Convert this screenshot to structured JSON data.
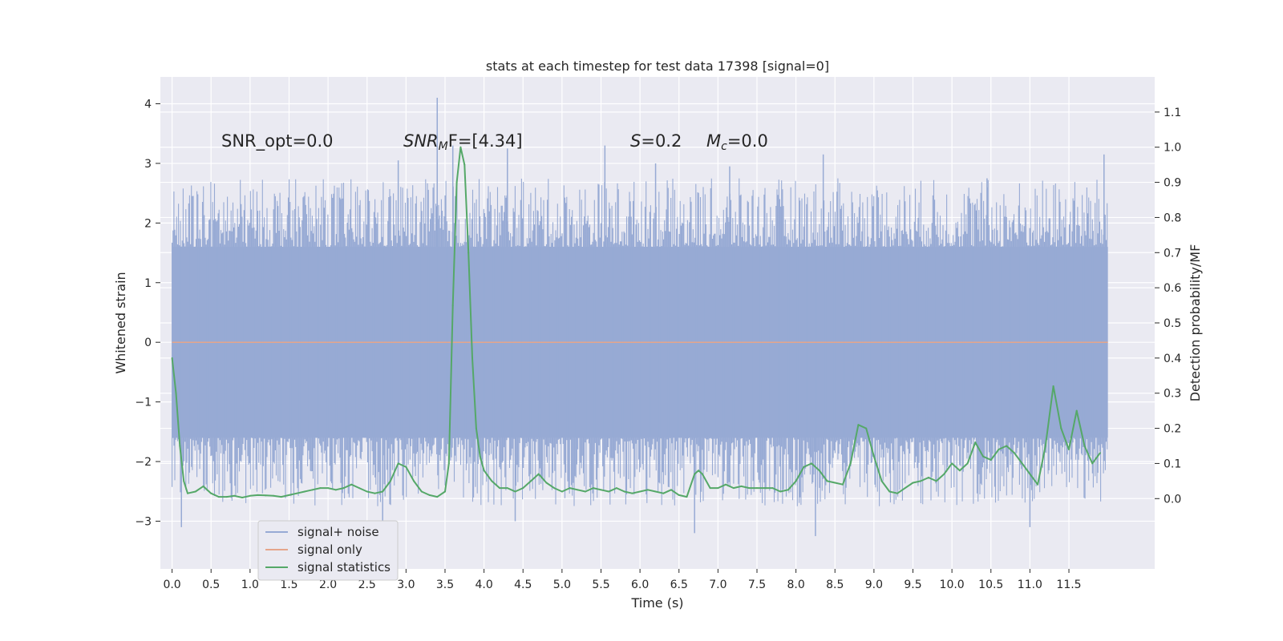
{
  "chart_data": {
    "type": "line",
    "title": "stats at each timestep for test data 17398 [signal=0]",
    "xlabel": "Time (s)",
    "ylabel": "Whitened strain",
    "y2label": "Detection probability/MF",
    "xlim": [
      -0.15,
      12.6
    ],
    "ylim": [
      -3.8,
      4.45
    ],
    "y2lim": [
      -0.2,
      1.2
    ],
    "x_ticks": [
      0.0,
      0.5,
      1.0,
      1.5,
      2.0,
      2.5,
      3.0,
      3.5,
      4.0,
      4.5,
      5.0,
      5.5,
      6.0,
      6.5,
      7.0,
      7.5,
      8.0,
      8.5,
      9.0,
      9.5,
      10.0,
      10.5,
      11.0,
      11.5
    ],
    "x_tick_labels": [
      "0.0",
      "0.5",
      "1.0",
      "1.5",
      "2.0",
      "2.5",
      "3.0",
      "3.5",
      "4.0",
      "4.5",
      "5.0",
      "5.5",
      "6.0",
      "6.5",
      "7.0",
      "7.5",
      "8.0",
      "8.5",
      "9.0",
      "9.5",
      "10.0",
      "10.5",
      "11.0",
      "11.5"
    ],
    "y_ticks": [
      -3,
      -2,
      -1,
      0,
      1,
      2,
      3,
      4
    ],
    "y_tick_labels": [
      "−3",
      "−2",
      "−1",
      "0",
      "1",
      "2",
      "3",
      "4"
    ],
    "y2_ticks": [
      0.0,
      0.1,
      0.2,
      0.3,
      0.4,
      0.5,
      0.6,
      0.7,
      0.8,
      0.9,
      1.0,
      1.1
    ],
    "y2_tick_labels": [
      "0.0",
      "0.1",
      "0.2",
      "0.3",
      "0.4",
      "0.5",
      "0.6",
      "0.7",
      "0.8",
      "0.9",
      "1.0",
      "1.1"
    ],
    "grid": true,
    "legend_position": "bottom-left",
    "annotations": {
      "snr_opt": "SNR_opt=0.0",
      "snr_mf_main": "SNR",
      "snr_mf_sub": "M",
      "snr_mf_rest": "F=[4.34]",
      "s_main": "S",
      "s_rest": "=0.2",
      "mc_main": "M",
      "mc_sub": "c",
      "mc_rest": "=0.0"
    },
    "series": [
      {
        "name": "signal+ noise",
        "color": "#97aad4",
        "axis": "left",
        "x_range": [
          0.0,
          12.0
        ],
        "envelope_typical": [
          -1.6,
          1.6
        ],
        "envelope_peak": [
          -3.2,
          4.1
        ],
        "peaks": [
          {
            "x": 3.4,
            "y": 4.1
          },
          {
            "x": 3.6,
            "y": 3.3
          },
          {
            "x": 4.3,
            "y": 3.25
          },
          {
            "x": 5.55,
            "y": 3.3
          },
          {
            "x": 8.35,
            "y": 3.15
          },
          {
            "x": 11.95,
            "y": 3.15
          },
          {
            "x": 2.9,
            "y": 3.05
          },
          {
            "x": 6.2,
            "y": 3.0
          },
          {
            "x": 7.15,
            "y": 2.95
          },
          {
            "x": 10.45,
            "y": 2.75
          },
          {
            "x": 0.12,
            "y": -3.1
          },
          {
            "x": 6.7,
            "y": -3.2
          },
          {
            "x": 8.25,
            "y": -3.25
          },
          {
            "x": 11.0,
            "y": -3.1
          },
          {
            "x": 2.7,
            "y": -3.05
          },
          {
            "x": 4.4,
            "y": -3.0
          }
        ]
      },
      {
        "name": "signal only",
        "color": "#e5a58b",
        "axis": "left",
        "x": [
          0.0,
          12.0
        ],
        "y": [
          0.0,
          0.0
        ]
      },
      {
        "name": "signal statistics",
        "color": "#55a868",
        "axis": "right",
        "x": [
          0.0,
          0.05,
          0.1,
          0.15,
          0.2,
          0.3,
          0.4,
          0.5,
          0.6,
          0.7,
          0.8,
          0.9,
          1.0,
          1.1,
          1.2,
          1.3,
          1.4,
          1.5,
          1.6,
          1.7,
          1.8,
          1.9,
          2.0,
          2.1,
          2.2,
          2.3,
          2.4,
          2.5,
          2.6,
          2.7,
          2.8,
          2.9,
          3.0,
          3.1,
          3.2,
          3.3,
          3.4,
          3.5,
          3.55,
          3.6,
          3.65,
          3.7,
          3.75,
          3.8,
          3.85,
          3.9,
          3.95,
          4.0,
          4.1,
          4.2,
          4.3,
          4.4,
          4.5,
          4.6,
          4.7,
          4.8,
          4.9,
          5.0,
          5.1,
          5.2,
          5.3,
          5.4,
          5.5,
          5.6,
          5.7,
          5.8,
          5.9,
          6.0,
          6.1,
          6.2,
          6.3,
          6.4,
          6.5,
          6.6,
          6.7,
          6.75,
          6.8,
          6.9,
          7.0,
          7.1,
          7.2,
          7.3,
          7.4,
          7.5,
          7.6,
          7.7,
          7.8,
          7.9,
          8.0,
          8.1,
          8.2,
          8.3,
          8.4,
          8.5,
          8.6,
          8.7,
          8.8,
          8.9,
          9.0,
          9.1,
          9.2,
          9.3,
          9.4,
          9.5,
          9.6,
          9.7,
          9.8,
          9.9,
          10.0,
          10.1,
          10.2,
          10.3,
          10.4,
          10.5,
          10.6,
          10.7,
          10.8,
          10.9,
          11.0,
          11.1,
          11.2,
          11.3,
          11.4,
          11.5,
          11.6,
          11.7,
          11.8,
          11.9
        ],
        "y": [
          0.4,
          0.3,
          0.15,
          0.05,
          0.015,
          0.02,
          0.035,
          0.015,
          0.005,
          0.005,
          0.008,
          0.003,
          0.008,
          0.01,
          0.009,
          0.008,
          0.005,
          0.01,
          0.015,
          0.02,
          0.025,
          0.03,
          0.03,
          0.025,
          0.03,
          0.04,
          0.03,
          0.02,
          0.015,
          0.02,
          0.05,
          0.1,
          0.09,
          0.05,
          0.02,
          0.01,
          0.005,
          0.02,
          0.1,
          0.55,
          0.9,
          1.0,
          0.95,
          0.7,
          0.4,
          0.2,
          0.12,
          0.08,
          0.05,
          0.03,
          0.03,
          0.02,
          0.03,
          0.05,
          0.07,
          0.045,
          0.03,
          0.02,
          0.03,
          0.025,
          0.02,
          0.03,
          0.025,
          0.02,
          0.03,
          0.02,
          0.015,
          0.02,
          0.025,
          0.02,
          0.015,
          0.025,
          0.01,
          0.005,
          0.07,
          0.08,
          0.07,
          0.03,
          0.03,
          0.04,
          0.03,
          0.035,
          0.03,
          0.03,
          0.03,
          0.03,
          0.02,
          0.025,
          0.05,
          0.09,
          0.1,
          0.08,
          0.05,
          0.045,
          0.04,
          0.1,
          0.21,
          0.2,
          0.12,
          0.05,
          0.02,
          0.015,
          0.03,
          0.045,
          0.05,
          0.06,
          0.05,
          0.07,
          0.1,
          0.08,
          0.1,
          0.16,
          0.12,
          0.11,
          0.14,
          0.15,
          0.13,
          0.1,
          0.07,
          0.04,
          0.15,
          0.32,
          0.2,
          0.14,
          0.25,
          0.15,
          0.1,
          0.13
        ]
      }
    ]
  }
}
